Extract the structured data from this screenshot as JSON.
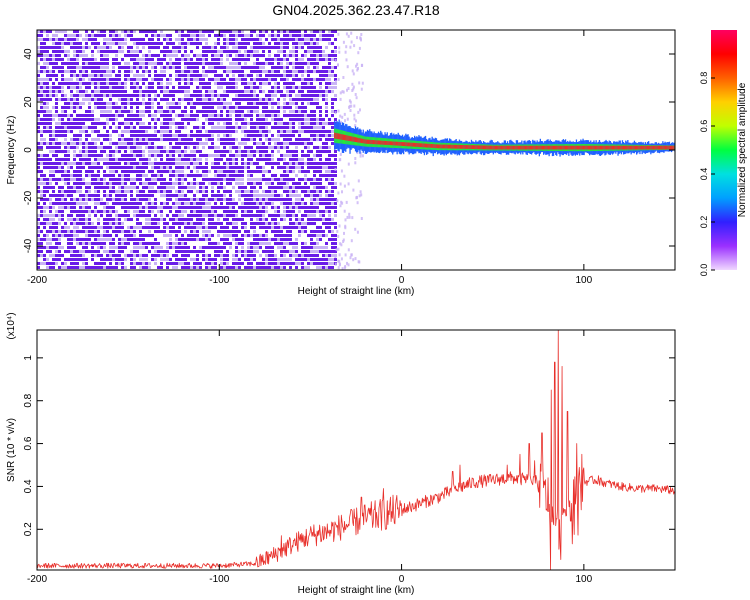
{
  "title": "GN04.2025.362.23.47.R18",
  "colors": {
    "snr_line": "#e8302b",
    "spectrogram_noise": "#6a1de8",
    "spectrogram_noise_light": "#c9b3f5",
    "band_ridge": "#e8302b",
    "band_mid": "#25e83a",
    "band_edge": "#2060ff"
  },
  "chart_data": [
    {
      "type": "heatmap",
      "xlabel": "Height of straight line (km)",
      "ylabel": "Frequency (Hz)",
      "xlim": [
        -200,
        150
      ],
      "ylim": [
        -50,
        50
      ],
      "x_ticks": [
        -200,
        -100,
        0,
        100
      ],
      "y_ticks": [
        -40,
        -20,
        0,
        20,
        40
      ],
      "noise_region_x": [
        -200,
        -37
      ],
      "narrowband_signal": {
        "x_range": [
          -37,
          150
        ],
        "frequency_center_hz": [
          [
            -37,
            6
          ],
          [
            -20,
            3.5
          ],
          [
            0,
            2.5
          ],
          [
            20,
            1.5
          ],
          [
            50,
            1
          ],
          [
            100,
            1
          ],
          [
            150,
            1
          ]
        ],
        "half_width_hz": [
          [
            -37,
            5
          ],
          [
            -20,
            3.5
          ],
          [
            0,
            3
          ],
          [
            50,
            2
          ],
          [
            100,
            2.5
          ],
          [
            150,
            1.5
          ]
        ]
      },
      "colorbar": {
        "label": "Normalized spectral amplitude",
        "range": [
          0,
          1
        ],
        "ticks": [
          0.0,
          0.2,
          0.4,
          0.6,
          0.8
        ],
        "stops": [
          "#f0d8ff",
          "#9a30ff",
          "#3020ff",
          "#00a0ff",
          "#00e0e0",
          "#00ff40",
          "#c0ff00",
          "#ffd000",
          "#ff6000",
          "#ff0000",
          "#ff0060"
        ]
      }
    },
    {
      "type": "line",
      "xlabel": "Height of straight line (km)",
      "ylabel": "SNR (10 * v/v)",
      "y_multiplier": "(x10⁴)",
      "xlim": [
        -200,
        150
      ],
      "ylim": [
        0.01,
        1.13
      ],
      "x_ticks": [
        -200,
        -100,
        0,
        100
      ],
      "y_ticks": [
        0.2,
        0.4,
        0.6,
        0.8,
        1
      ],
      "series": [
        {
          "x": [
            -200,
            -150,
            -100,
            -80,
            -70,
            -60,
            -50,
            -40,
            -30,
            -20,
            -10,
            0,
            10,
            20,
            30,
            40,
            50,
            60,
            70,
            75,
            80,
            85,
            90,
            95,
            100,
            105,
            110,
            120,
            130,
            140,
            150
          ],
          "y": [
            0.03,
            0.03,
            0.03,
            0.04,
            0.08,
            0.13,
            0.17,
            0.19,
            0.22,
            0.25,
            0.27,
            0.29,
            0.32,
            0.35,
            0.39,
            0.42,
            0.43,
            0.44,
            0.43,
            0.42,
            0.35,
            0.2,
            0.3,
            0.38,
            0.42,
            0.43,
            0.42,
            0.4,
            0.39,
            0.39,
            0.38
          ],
          "peaks": [
            {
              "x": -66,
              "y": 0.17
            },
            {
              "x": -45,
              "y": 0.22
            },
            {
              "x": -22,
              "y": 0.35
            },
            {
              "x": -10,
              "y": 0.39
            },
            {
              "x": 28,
              "y": 0.47
            },
            {
              "x": 32,
              "y": 0.5
            },
            {
              "x": 58,
              "y": 0.5
            },
            {
              "x": 65,
              "y": 0.55
            },
            {
              "x": 70,
              "y": 0.6
            },
            {
              "x": 73,
              "y": 0.52
            },
            {
              "x": 77,
              "y": 0.65
            },
            {
              "x": 82,
              "y": 0.85
            },
            {
              "x": 84,
              "y": 0.98
            },
            {
              "x": 86,
              "y": 1.13
            },
            {
              "x": 88,
              "y": 0.96
            },
            {
              "x": 91,
              "y": 0.75
            },
            {
              "x": 96,
              "y": 0.6
            },
            {
              "x": 99,
              "y": 0.55
            },
            {
              "x": 108,
              "y": 0.45
            }
          ]
        }
      ]
    }
  ]
}
